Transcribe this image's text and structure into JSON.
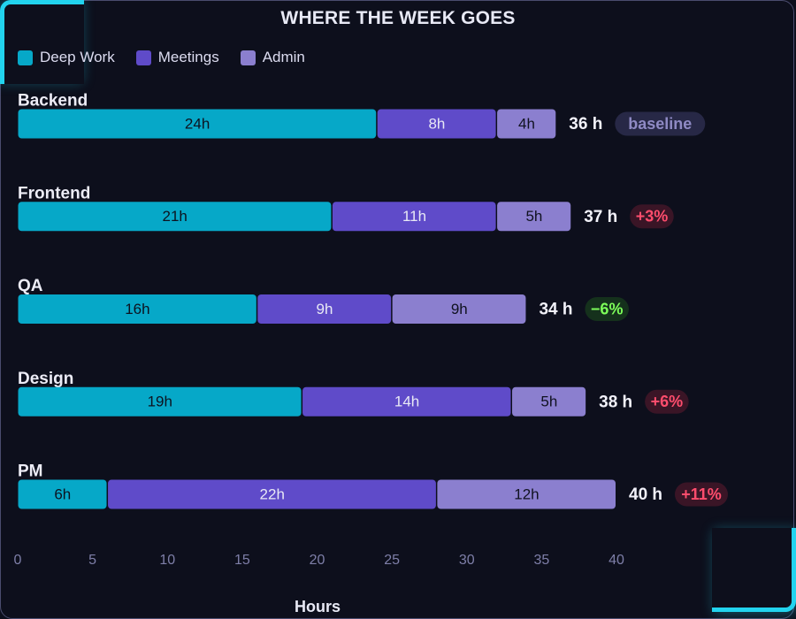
{
  "title": "WHERE THE WEEK GOES",
  "legend": [
    {
      "label": "Deep Work",
      "color": "#06a8c8"
    },
    {
      "label": "Meetings",
      "color": "#5f4bc9"
    },
    {
      "label": "Admin",
      "color": "#8b7fcf"
    }
  ],
  "chart_data": {
    "type": "bar",
    "orientation": "horizontal",
    "stacked": true,
    "title": "WHERE THE WEEK GOES",
    "xlabel": "Hours",
    "ylabel": "",
    "xlim": [
      0,
      40
    ],
    "x_ticks": [
      0,
      5,
      10,
      15,
      20,
      25,
      30,
      35,
      40
    ],
    "categories": [
      "Backend",
      "Frontend",
      "QA",
      "Design",
      "PM"
    ],
    "series": [
      {
        "name": "Deep Work",
        "color": "#06a8c8",
        "values": [
          24,
          21,
          16,
          19,
          6
        ]
      },
      {
        "name": "Meetings",
        "color": "#5f4bc9",
        "values": [
          8,
          11,
          9,
          14,
          22
        ]
      },
      {
        "name": "Admin",
        "color": "#8b7fcf",
        "values": [
          4,
          5,
          9,
          5,
          12
        ]
      }
    ],
    "totals": [
      "36 h",
      "37 h",
      "34 h",
      "38 h",
      "40 h"
    ],
    "deltas": [
      {
        "text": "baseline",
        "kind": "neutral"
      },
      {
        "text": "+3%",
        "kind": "up"
      },
      {
        "text": "−6%",
        "kind": "down"
      },
      {
        "text": "+6%",
        "kind": "up"
      },
      {
        "text": "+11%",
        "kind": "up"
      }
    ],
    "segment_label_suffix": "h",
    "grid": false,
    "legend_position": "top-left"
  }
}
